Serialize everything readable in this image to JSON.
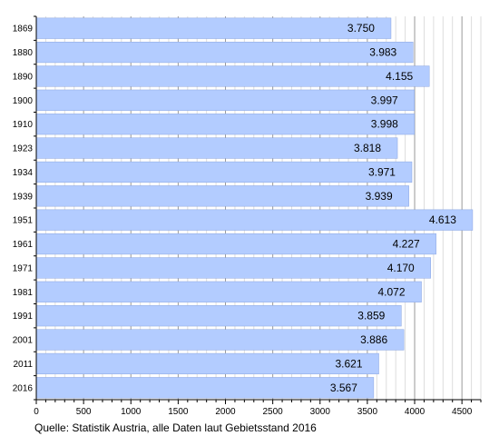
{
  "chart_data": {
    "type": "bar",
    "orientation": "horizontal",
    "categories": [
      "1869",
      "1880",
      "1890",
      "1900",
      "1910",
      "1923",
      "1934",
      "1939",
      "1951",
      "1961",
      "1971",
      "1981",
      "1991",
      "2001",
      "2011",
      "2016"
    ],
    "values": [
      3750,
      3983,
      4155,
      3997,
      3998,
      3818,
      3971,
      3939,
      4613,
      4227,
      4170,
      4072,
      3859,
      3886,
      3621,
      3567
    ],
    "value_labels": [
      "3.750",
      "3.983",
      "4.155",
      "3.997",
      "3.998",
      "3.818",
      "3.971",
      "3.939",
      "4.613",
      "4.227",
      "4.170",
      "4.072",
      "3.859",
      "3.886",
      "3.621",
      "3.567"
    ],
    "x_ticks": [
      0,
      500,
      1000,
      1500,
      2000,
      2500,
      3000,
      3500,
      4000,
      4500
    ],
    "x_tick_labels": [
      "0",
      "500",
      "1000",
      "1500",
      "2000",
      "2500",
      "3000",
      "3500",
      "4000",
      "4500"
    ],
    "xlim": [
      0,
      4700
    ],
    "minor_tick_step": 100,
    "grid": "vertical",
    "bar_color": "#b3ccff",
    "bar_border_color": "#8aa5e0",
    "source": "Quelle: Statistik Austria, alle Daten laut Gebietsstand 2016"
  }
}
